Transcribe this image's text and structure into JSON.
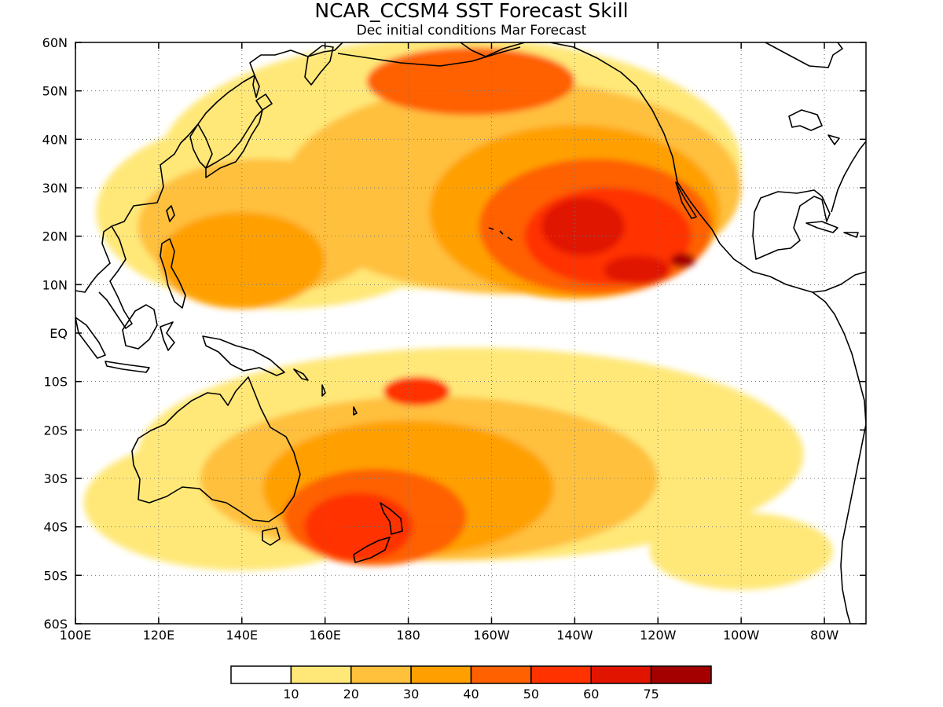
{
  "title": "NCAR_CCSM4 SST Forecast Skill",
  "subtitle": "Dec initial conditions  Mar Forecast",
  "map": {
    "lon_range": [
      100,
      290
    ],
    "lat_range": [
      -60,
      60
    ],
    "x_ticks": [
      {
        "lon": 100,
        "label": "100E"
      },
      {
        "lon": 120,
        "label": "120E"
      },
      {
        "lon": 140,
        "label": "140E"
      },
      {
        "lon": 160,
        "label": "160E"
      },
      {
        "lon": 180,
        "label": "180"
      },
      {
        "lon": 200,
        "label": "160W"
      },
      {
        "lon": 220,
        "label": "140W"
      },
      {
        "lon": 240,
        "label": "120W"
      },
      {
        "lon": 260,
        "label": "100W"
      },
      {
        "lon": 280,
        "label": "80W"
      }
    ],
    "y_ticks": [
      {
        "lat": 60,
        "label": "60N"
      },
      {
        "lat": 50,
        "label": "50N"
      },
      {
        "lat": 40,
        "label": "40N"
      },
      {
        "lat": 30,
        "label": "30N"
      },
      {
        "lat": 20,
        "label": "20N"
      },
      {
        "lat": 10,
        "label": "10N"
      },
      {
        "lat": 0,
        "label": "EQ"
      },
      {
        "lat": -10,
        "label": "10S"
      },
      {
        "lat": -20,
        "label": "20S"
      },
      {
        "lat": -30,
        "label": "30S"
      },
      {
        "lat": -40,
        "label": "40S"
      },
      {
        "lat": -50,
        "label": "50S"
      },
      {
        "lat": -60,
        "label": "60S"
      }
    ]
  },
  "colorbar": {
    "colors": [
      "#ffffff",
      "#ffe878",
      "#ffc03c",
      "#ffa000",
      "#ff6000",
      "#ff3200",
      "#e11400",
      "#a50000"
    ],
    "labels": [
      "10",
      "20",
      "30",
      "40",
      "50",
      "60",
      "75"
    ]
  },
  "skill_regions": [
    {
      "level": 1,
      "lon": 190,
      "lat": 35,
      "rx": 70,
      "ry": 26
    },
    {
      "level": 1,
      "lon": 150,
      "lat": 25,
      "rx": 45,
      "ry": 20
    },
    {
      "level": 1,
      "lon": 195,
      "lat": -25,
      "rx": 80,
      "ry": 22
    },
    {
      "level": 1,
      "lon": 140,
      "lat": -35,
      "rx": 38,
      "ry": 14
    },
    {
      "level": 1,
      "lon": 260,
      "lat": -45,
      "rx": 22,
      "ry": 8
    },
    {
      "level": 2,
      "lon": 205,
      "lat": 30,
      "rx": 55,
      "ry": 22
    },
    {
      "level": 2,
      "lon": 145,
      "lat": 22,
      "rx": 30,
      "ry": 14
    },
    {
      "level": 2,
      "lon": 185,
      "lat": -30,
      "rx": 55,
      "ry": 17
    },
    {
      "level": 3,
      "lon": 220,
      "lat": 25,
      "rx": 35,
      "ry": 18
    },
    {
      "level": 3,
      "lon": 180,
      "lat": -32,
      "rx": 35,
      "ry": 14
    },
    {
      "level": 3,
      "lon": 140,
      "lat": 15,
      "rx": 20,
      "ry": 10
    },
    {
      "level": 4,
      "lon": 225,
      "lat": 22,
      "rx": 28,
      "ry": 14
    },
    {
      "level": 4,
      "lon": 172,
      "lat": -38,
      "rx": 22,
      "ry": 10
    },
    {
      "level": 4,
      "lon": 195,
      "lat": 52,
      "rx": 25,
      "ry": 7
    },
    {
      "level": 5,
      "lon": 228,
      "lat": 20,
      "rx": 20,
      "ry": 10
    },
    {
      "level": 5,
      "lon": 168,
      "lat": -40,
      "rx": 13,
      "ry": 7
    },
    {
      "level": 5,
      "lon": 182,
      "lat": -12,
      "rx": 8,
      "ry": 3
    },
    {
      "level": 6,
      "lon": 222,
      "lat": 22,
      "rx": 10,
      "ry": 6
    },
    {
      "level": 6,
      "lon": 235,
      "lat": 13,
      "rx": 8,
      "ry": 3
    },
    {
      "level": 7,
      "lon": 246,
      "lat": 15,
      "rx": 3,
      "ry": 1.5
    }
  ]
}
